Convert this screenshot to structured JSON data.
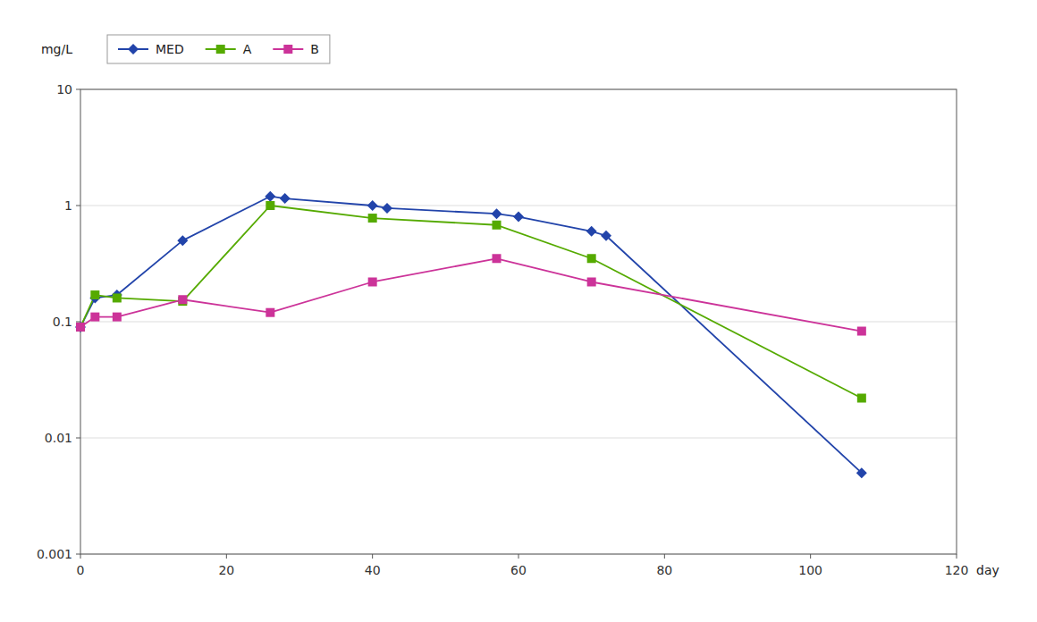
{
  "chart_data": {
    "type": "line",
    "x_label": "day",
    "y_label": "mg/L",
    "series": [
      {
        "name": "MED",
        "color": "#2244AA",
        "marker": "diamond",
        "x": [
          0,
          2,
          5,
          14,
          26,
          28,
          40,
          42,
          57,
          60,
          70,
          72,
          107
        ],
        "values": [
          0.09,
          0.16,
          0.17,
          0.5,
          1.2,
          1.15,
          1.0,
          0.95,
          0.85,
          0.8,
          0.6,
          0.55,
          0.005
        ]
      },
      {
        "name": "A",
        "color": "#55AA00",
        "marker": "square",
        "x": [
          0,
          2,
          5,
          14,
          26,
          40,
          57,
          70,
          107
        ],
        "values": [
          0.09,
          0.17,
          0.16,
          0.15,
          1.0,
          0.78,
          0.68,
          0.35,
          0.022
        ]
      },
      {
        "name": "B",
        "color": "#CC3399",
        "marker": "square",
        "x": [
          0,
          2,
          5,
          14,
          26,
          40,
          57,
          70,
          107
        ],
        "values": [
          0.09,
          0.11,
          0.11,
          0.155,
          0.12,
          0.22,
          0.35,
          0.22,
          0.083
        ]
      }
    ],
    "xlim": [
      0,
      120
    ],
    "xticks": [
      0,
      20,
      40,
      60,
      80,
      100,
      120
    ],
    "ylim": [
      0.001,
      10
    ],
    "yticks": [
      0.001,
      0.01,
      0.1,
      1,
      10
    ],
    "log": "y",
    "grid": true,
    "legend": "top"
  }
}
